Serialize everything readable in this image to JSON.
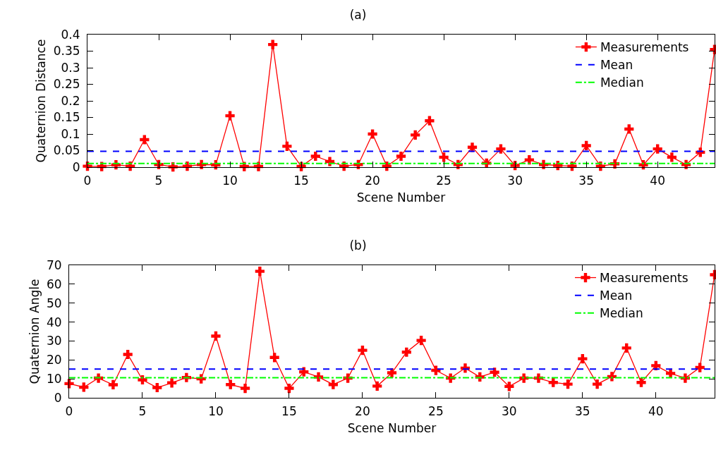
{
  "chart_data": [
    {
      "type": "line",
      "title": "(a)",
      "xlabel": "Scene Number",
      "ylabel": "Quaternion Distance",
      "x": [
        0,
        1,
        2,
        3,
        4,
        5,
        6,
        7,
        8,
        9,
        10,
        11,
        12,
        13,
        14,
        15,
        16,
        17,
        18,
        19,
        20,
        21,
        22,
        23,
        24,
        25,
        26,
        27,
        28,
        29,
        30,
        31,
        32,
        33,
        34,
        35,
        36,
        37,
        38,
        39,
        40,
        41,
        42,
        43,
        44
      ],
      "series": [
        {
          "name": "Measurements",
          "color": "#ff0000",
          "values": [
            0.003,
            0.002,
            0.007,
            0.003,
            0.083,
            0.008,
            0.001,
            0.003,
            0.008,
            0.007,
            0.155,
            0.002,
            0.002,
            0.37,
            0.063,
            0.002,
            0.033,
            0.017,
            0.003,
            0.008,
            0.1,
            0.003,
            0.033,
            0.097,
            0.14,
            0.03,
            0.008,
            0.06,
            0.012,
            0.055,
            0.005,
            0.022,
            0.008,
            0.005,
            0.003,
            0.065,
            0.003,
            0.01,
            0.115,
            0.007,
            0.055,
            0.03,
            0.008,
            0.045,
            0.355
          ]
        }
      ],
      "ref_lines": [
        {
          "axis": "y",
          "value": 0.048,
          "label": "Mean",
          "color": "#0000ff",
          "line_style": "dashed"
        },
        {
          "axis": "y",
          "value": 0.011,
          "label": "Median",
          "color": "#00ff00",
          "line_style": "dashdot"
        }
      ],
      "xlim": [
        0,
        44
      ],
      "xticks": [
        0,
        5,
        10,
        15,
        20,
        25,
        30,
        35,
        40
      ],
      "ylim": [
        0,
        0.4
      ],
      "yticks": [
        0,
        0.05,
        0.1,
        0.15,
        0.2,
        0.25,
        0.3,
        0.35,
        0.4
      ],
      "grid": false,
      "legend": "top right",
      "marker": "cross",
      "line_style": "solid"
    },
    {
      "type": "line",
      "title": "(b)",
      "xlabel": "Scene Number",
      "ylabel": "Quaternion Angle",
      "x": [
        0,
        1,
        2,
        3,
        4,
        5,
        6,
        7,
        8,
        9,
        10,
        11,
        12,
        13,
        14,
        15,
        16,
        17,
        18,
        19,
        20,
        21,
        22,
        23,
        24,
        25,
        26,
        27,
        28,
        29,
        30,
        31,
        32,
        33,
        34,
        35,
        36,
        37,
        38,
        39,
        40,
        41,
        42,
        43,
        44
      ],
      "series": [
        {
          "name": "Measurements",
          "color": "#ff0000",
          "values": [
            7.5,
            5.6,
            10.4,
            6.9,
            22.9,
            9.5,
            5.4,
            7.9,
            10.7,
            10,
            32.6,
            7,
            5,
            66.8,
            21.3,
            5,
            13.7,
            11,
            7,
            10.4,
            25.1,
            6.2,
            13.2,
            24.1,
            30.3,
            14.5,
            10.4,
            15.7,
            11,
            13.5,
            6,
            10.4,
            10.4,
            8.1,
            7.2,
            20.6,
            7.2,
            11.2,
            26.3,
            8.1,
            17,
            12.9,
            10.4,
            16,
            65
          ]
        }
      ],
      "ref_lines": [
        {
          "axis": "y",
          "value": 15.2,
          "label": "Mean",
          "color": "#0000ff",
          "line_style": "dashed"
        },
        {
          "axis": "y",
          "value": 10.6,
          "label": "Median",
          "color": "#00ff00",
          "line_style": "dashdot"
        }
      ],
      "xlim": [
        0,
        44
      ],
      "xticks": [
        0,
        5,
        10,
        15,
        20,
        25,
        30,
        35,
        40
      ],
      "ylim": [
        0,
        70
      ],
      "yticks": [
        0,
        10,
        20,
        30,
        40,
        50,
        60,
        70
      ],
      "grid": false,
      "legend": "top right",
      "marker": "cross",
      "line_style": "solid"
    }
  ]
}
